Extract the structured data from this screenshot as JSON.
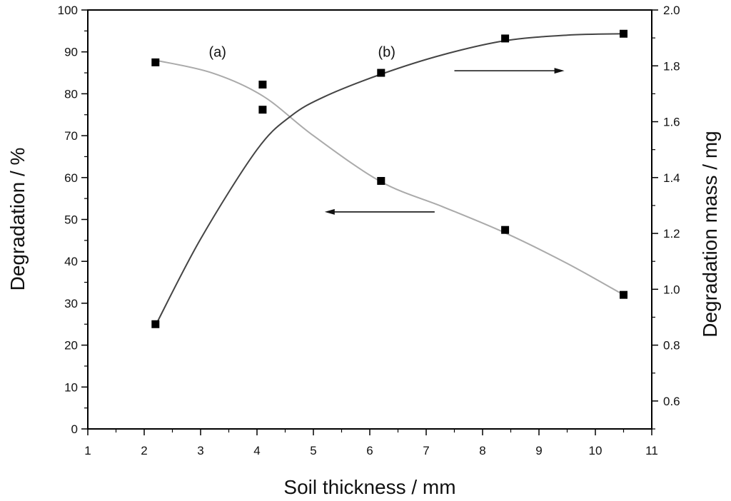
{
  "chart_data": {
    "type": "scatter",
    "title": "",
    "xlabel": "Soil thickness / mm",
    "ylabel_left": "Degradation / %",
    "ylabel_right": "Degradation mass / mg",
    "xlim": [
      1,
      11
    ],
    "ylim_left": [
      0,
      100
    ],
    "ylim_right": [
      0.5,
      2.0
    ],
    "xticks": [
      1,
      2,
      3,
      4,
      5,
      6,
      7,
      8,
      9,
      10,
      11
    ],
    "yticks_left": [
      0,
      10,
      20,
      30,
      40,
      50,
      60,
      70,
      80,
      90,
      100
    ],
    "yticks_right": [
      "0.6",
      "0.8",
      "1.0",
      "1.2",
      "1.4",
      "1.6",
      "1.8",
      "2.0"
    ],
    "grid": false,
    "legend": "none",
    "series": [
      {
        "label": "(a)",
        "axis": "left",
        "color": "#aaaaaa",
        "points": [
          {
            "x": 2.2,
            "y": 87.5
          },
          {
            "x": 4.1,
            "y": 82.2
          },
          {
            "x": 4.1,
            "y": 76.2
          },
          {
            "x": 6.2,
            "y": 59.2
          },
          {
            "x": 8.4,
            "y": 47.5
          },
          {
            "x": 10.5,
            "y": 32.0
          }
        ],
        "fit": [
          [
            2.2,
            88.0
          ],
          [
            3.2,
            85.0
          ],
          [
            4.1,
            79.5
          ],
          [
            5.0,
            70.0
          ],
          [
            6.2,
            59.0
          ],
          [
            7.3,
            53.0
          ],
          [
            8.4,
            46.8
          ],
          [
            9.5,
            39.5
          ],
          [
            10.5,
            32.0
          ]
        ]
      },
      {
        "label": "(b)",
        "axis": "right",
        "color": "#444444",
        "points": [
          {
            "x": 2.2,
            "y": 0.875
          },
          {
            "x": 6.2,
            "y": 1.775
          },
          {
            "x": 8.4,
            "y": 1.898
          },
          {
            "x": 10.5,
            "y": 1.915
          }
        ],
        "fit": [
          [
            2.2,
            0.87
          ],
          [
            3.0,
            1.18
          ],
          [
            4.0,
            1.5
          ],
          [
            4.6,
            1.62
          ],
          [
            5.2,
            1.69
          ],
          [
            6.2,
            1.77
          ],
          [
            7.3,
            1.84
          ],
          [
            8.4,
            1.89
          ],
          [
            9.5,
            1.91
          ],
          [
            10.5,
            1.915
          ]
        ]
      }
    ],
    "annotations": [
      {
        "text": "(a)",
        "x": 3.3,
        "y": 88.8,
        "axis": "left"
      },
      {
        "text": "(b)",
        "x": 6.3,
        "y": 88.8,
        "axis": "left"
      }
    ],
    "arrows": [
      {
        "from": [
          7.15,
          51.8
        ],
        "to": [
          5.2,
          51.8
        ],
        "axis": "left",
        "points_to": "left-axis"
      },
      {
        "from": [
          7.5,
          85.5
        ],
        "to": [
          9.45,
          85.5
        ],
        "axis": "left",
        "points_to": "right-axis"
      }
    ]
  }
}
